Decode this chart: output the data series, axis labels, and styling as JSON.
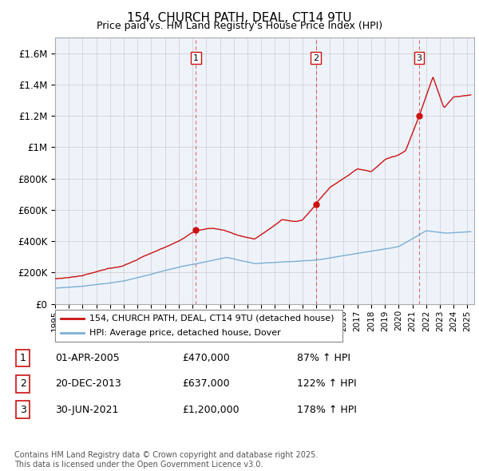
{
  "title": "154, CHURCH PATH, DEAL, CT14 9TU",
  "subtitle": "Price paid vs. HM Land Registry's House Price Index (HPI)",
  "ylim": [
    0,
    1700000
  ],
  "yticks": [
    0,
    200000,
    400000,
    600000,
    800000,
    1000000,
    1200000,
    1400000,
    1600000
  ],
  "ytick_labels": [
    "£0",
    "£200K",
    "£400K",
    "£600K",
    "£800K",
    "£1M",
    "£1.2M",
    "£1.4M",
    "£1.6M"
  ],
  "xlim_start": 1995.0,
  "xlim_end": 2025.5,
  "sale_dates": [
    2005.25,
    2013.97,
    2021.5
  ],
  "sale_prices": [
    470000,
    637000,
    1200000
  ],
  "sale_labels": [
    "1",
    "2",
    "3"
  ],
  "hpi_line_color": "#7BAFD4",
  "price_line_color": "#CC1111",
  "chart_bg_color": "#EEF3FA",
  "grid_color": "#CCCCCC",
  "shaded_bg_color": "#D8E4F0",
  "legend_label_red": "154, CHURCH PATH, DEAL, CT14 9TU (detached house)",
  "legend_label_blue": "HPI: Average price, detached house, Dover",
  "table_rows": [
    [
      "1",
      "01-APR-2005",
      "£470,000",
      "87% ↑ HPI"
    ],
    [
      "2",
      "20-DEC-2013",
      "£637,000",
      "122% ↑ HPI"
    ],
    [
      "3",
      "30-JUN-2021",
      "£1,200,000",
      "178% ↑ HPI"
    ]
  ],
  "footnote": "Contains HM Land Registry data © Crown copyright and database right 2025.\nThis data is licensed under the Open Government Licence v3.0.",
  "xtick_years": [
    1995,
    1996,
    1997,
    1998,
    1999,
    2000,
    2001,
    2002,
    2003,
    2004,
    2005,
    2006,
    2007,
    2008,
    2009,
    2010,
    2011,
    2012,
    2013,
    2014,
    2015,
    2016,
    2017,
    2018,
    2019,
    2020,
    2021,
    2022,
    2023,
    2024,
    2025
  ]
}
